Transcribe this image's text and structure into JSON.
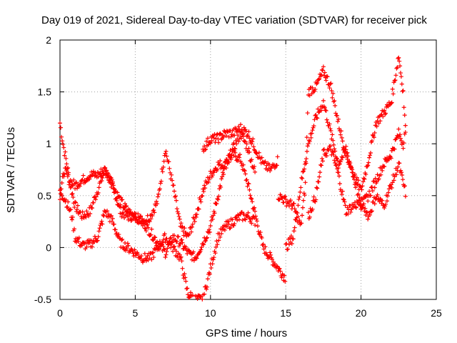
{
  "chart_data": {
    "type": "scatter",
    "title": "Day 019 of 2021, Sidereal Day-to-day VTEC variation (SDTVAR) for receiver pick",
    "xlabel": "GPS time / hours",
    "ylabel": "SDTVAR / TECUs",
    "xlim": [
      0,
      25
    ],
    "ylim": [
      -0.5,
      2
    ],
    "xticks": [
      "0",
      "5",
      "10",
      "15",
      "20",
      "25"
    ],
    "yticks": [
      "-0.5",
      "0",
      "0.5",
      "1",
      "1.5",
      "2"
    ],
    "grid": true,
    "marker": "+",
    "color": "#ff0000",
    "series": [
      {
        "x": [
          0,
          0.2,
          0.4,
          0.7,
          1.0,
          1.5,
          2.0,
          2.5,
          3.0,
          3.5,
          4.0,
          4.5,
          5.0,
          5.5,
          6.0,
          6.5,
          7.0,
          7.5,
          8.0,
          8.5,
          9.0,
          9.5,
          10.0,
          10.5,
          11.0,
          11.5,
          12.0,
          12.5,
          13.0,
          13.5,
          14.0,
          14.5,
          15.0
        ],
        "y": [
          1.2,
          1.0,
          0.85,
          0.6,
          0.4,
          0.3,
          0.35,
          0.55,
          0.75,
          0.6,
          0.35,
          0.3,
          0.3,
          0.25,
          0.3,
          0.45,
          0.95,
          0.6,
          0.2,
          0.1,
          0.3,
          0.55,
          0.7,
          0.8,
          0.8,
          0.9,
          0.85,
          0.6,
          0.3,
          0.0,
          -0.1,
          -0.2,
          -0.3
        ]
      },
      {
        "x": [
          0,
          0.3,
          0.6,
          1.0,
          1.5,
          2.0,
          2.5,
          3.0,
          3.5,
          4.0,
          4.5,
          5.0,
          5.5,
          6.0,
          6.5,
          7.0,
          7.5,
          8.0,
          8.5,
          9.0,
          9.5,
          10.0,
          10.5,
          11.0,
          11.5,
          12.0,
          12.5,
          13.0
        ],
        "y": [
          0.5,
          0.75,
          0.65,
          0.6,
          0.65,
          0.7,
          0.7,
          0.75,
          0.6,
          0.45,
          0.35,
          0.3,
          0.25,
          0.15,
          0.05,
          -0.05,
          0.1,
          0.05,
          -0.05,
          -0.1,
          0.05,
          0.2,
          0.5,
          0.8,
          0.95,
          1.1,
          0.95,
          0.7
        ]
      },
      {
        "x": [
          0,
          0.4,
          0.8,
          1.0,
          1.5,
          2.0,
          2.5,
          3.0,
          3.5,
          4.0,
          4.5,
          5.0,
          5.5,
          6.0,
          6.5,
          7.0,
          7.5,
          8.0,
          8.5,
          9.0,
          9.5,
          10.0,
          10.5,
          11.0,
          11.5,
          12.0,
          12.5,
          13.0
        ],
        "y": [
          0.55,
          0.45,
          0.3,
          0.1,
          0.02,
          0.03,
          0.1,
          0.35,
          0.25,
          0.05,
          0.0,
          -0.05,
          -0.1,
          -0.1,
          0.0,
          0.1,
          0.0,
          -0.1,
          -0.45,
          -0.5,
          -0.5,
          -0.2,
          0.1,
          0.2,
          0.25,
          0.3,
          0.3,
          0.25
        ]
      },
      {
        "x": [
          9.5,
          10.0,
          10.5,
          11.0,
          11.5,
          12.0,
          12.5,
          13.0,
          13.5,
          14.0,
          14.5
        ],
        "y": [
          0.95,
          1.05,
          1.05,
          1.1,
          1.1,
          1.15,
          1.1,
          0.95,
          0.8,
          0.75,
          0.85
        ]
      },
      {
        "x": [
          14.5,
          15.0,
          15.5,
          16.0,
          16.3,
          16.5,
          17.0,
          17.5,
          18.0,
          18.5,
          19.0,
          19.5,
          20.0,
          20.5,
          21.0,
          21.5,
          22.0,
          22.5,
          22.8,
          23.0
        ],
        "y": [
          0.5,
          0.45,
          0.4,
          0.2,
          0.6,
          1.5,
          1.55,
          1.7,
          1.55,
          1.2,
          0.9,
          0.7,
          0.4,
          0.5,
          0.65,
          0.8,
          0.9,
          1.1,
          1.0,
          1.2
        ]
      },
      {
        "x": [
          15.0,
          15.5,
          16.0,
          16.5,
          17.0,
          17.5,
          18.0,
          18.5,
          19.0,
          19.5,
          20.0,
          20.5,
          21.0,
          21.5,
          22.0,
          22.5,
          22.8,
          23.0
        ],
        "y": [
          0.0,
          0.1,
          0.6,
          1.0,
          1.25,
          1.4,
          1.1,
          0.8,
          0.95,
          0.7,
          0.55,
          0.85,
          1.2,
          1.3,
          1.4,
          1.85,
          1.5,
          1.0
        ]
      },
      {
        "x": [
          16.5,
          17.0,
          17.5,
          18.0,
          18.5,
          19.0,
          19.5,
          20.0,
          20.5,
          21.0,
          21.5,
          22.0,
          22.5,
          23.0
        ],
        "y": [
          0.3,
          0.5,
          0.9,
          0.95,
          0.7,
          0.35,
          0.4,
          0.45,
          0.3,
          0.5,
          0.4,
          0.6,
          0.8,
          0.5
        ]
      }
    ]
  }
}
